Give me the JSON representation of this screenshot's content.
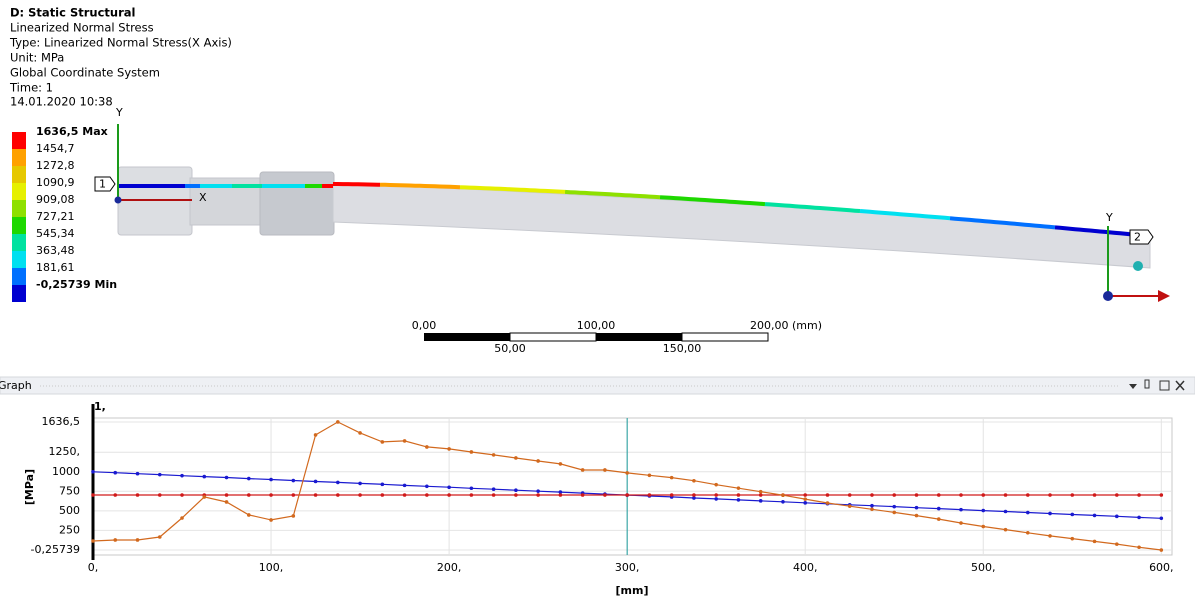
{
  "header": {
    "title": "D: Static Structural",
    "lines": [
      "Linearized Normal Stress",
      "Type: Linearized Normal Stress(X Axis)",
      "Unit: MPa",
      "Global Coordinate System",
      "Time: 1",
      "14.01.2020 10:38"
    ]
  },
  "legend": {
    "labels": [
      "1636,5 Max",
      "1454,7",
      "1272,8",
      "1090,9",
      "909,08",
      "727,21",
      "545,34",
      "363,48",
      "181,61",
      "-0,25739 Min"
    ],
    "colors": [
      "#ff0000",
      "#ffa100",
      "#e6c800",
      "#e6f000",
      "#8ee000",
      "#1ed800",
      "#00e2a0",
      "#00e0f0",
      "#0070ff",
      "#0000d0"
    ]
  },
  "view": {
    "probes": [
      "1",
      "2"
    ],
    "axis_x": "X",
    "axis_y": "Y"
  },
  "scale_bar": {
    "top": [
      "0,00",
      "100,00",
      "200,00 (mm)"
    ],
    "bottom": [
      "50,00",
      "150,00"
    ]
  },
  "graph": {
    "title": "Graph",
    "marker_label": "1,",
    "xlabel": "[mm]",
    "ylabel": "[MPa]",
    "grid": true,
    "cursor_x": 300,
    "xlim": [
      0,
      606
    ],
    "ylim": [
      -64,
      1687
    ],
    "xticks": [
      {
        "value": 0,
        "label": "0,"
      },
      {
        "value": 100,
        "label": "100,"
      },
      {
        "value": 200,
        "label": "200,"
      },
      {
        "value": 300,
        "label": "300,"
      },
      {
        "value": 400,
        "label": "400,"
      },
      {
        "value": 500,
        "label": "500,"
      },
      {
        "value": 600,
        "label": "600,"
      }
    ],
    "yticks": [
      {
        "value": 1636.5,
        "label": "1636,5"
      },
      {
        "value": 1250,
        "label": "1250,"
      },
      1000,
      750,
      500,
      250,
      {
        "value": -0.25739,
        "label": "-0,25739"
      }
    ],
    "x": [
      0,
      12.5,
      25,
      37.5,
      50,
      62.5,
      75,
      87.5,
      100,
      112.5,
      125,
      137.5,
      150,
      162.5,
      175,
      187.5,
      200,
      212.5,
      225,
      237.5,
      250,
      262.5,
      275,
      287.5,
      300,
      312.5,
      325,
      337.5,
      350,
      362.5,
      375,
      387.5,
      400,
      412.5,
      425,
      437.5,
      450,
      462.5,
      475,
      487.5,
      500,
      512.5,
      525,
      537.5,
      550,
      562.5,
      575,
      587.5,
      600
    ],
    "series": [
      {
        "color": "#1a1ad0",
        "values": [
          1000,
          988,
          975,
          963,
          950,
          938,
          926,
          913,
          901,
          888,
          876,
          864,
          851,
          839,
          826,
          814,
          802,
          789,
          777,
          764,
          752,
          740,
          727,
          715,
          702,
          690,
          678,
          665,
          653,
          640,
          628,
          616,
          603,
          591,
          578,
          566,
          554,
          541,
          529,
          516,
          504,
          492,
          479,
          467,
          454,
          442,
          430,
          417,
          405
        ]
      },
      {
        "color": "#d01a1a",
        "values": [
          703,
          703,
          703,
          703,
          703,
          703,
          703,
          703,
          703,
          703,
          703,
          703,
          703,
          703,
          703,
          703,
          703,
          703,
          703,
          703,
          703,
          703,
          703,
          703,
          703,
          703,
          703,
          703,
          703,
          703,
          703,
          703,
          703,
          703,
          703,
          703,
          703,
          703,
          703,
          703,
          703,
          703,
          703,
          703,
          703,
          703,
          703,
          703,
          703
        ]
      },
      {
        "color": "#d2691e",
        "values": [
          115,
          128,
          128,
          166,
          409,
          678,
          614,
          448,
          384,
          435,
          1471,
          1636.5,
          1496,
          1381,
          1394,
          1317,
          1292,
          1253,
          1215,
          1176,
          1138,
          1100,
          1023,
          1023,
          985,
          955,
          925,
          885,
          835,
          790,
          745,
          700,
          650,
          600,
          560,
          520,
          480,
          440,
          395,
          345,
          300,
          260,
          220,
          180,
          145,
          110,
          75,
          35,
          -0.25739
        ]
      }
    ]
  }
}
